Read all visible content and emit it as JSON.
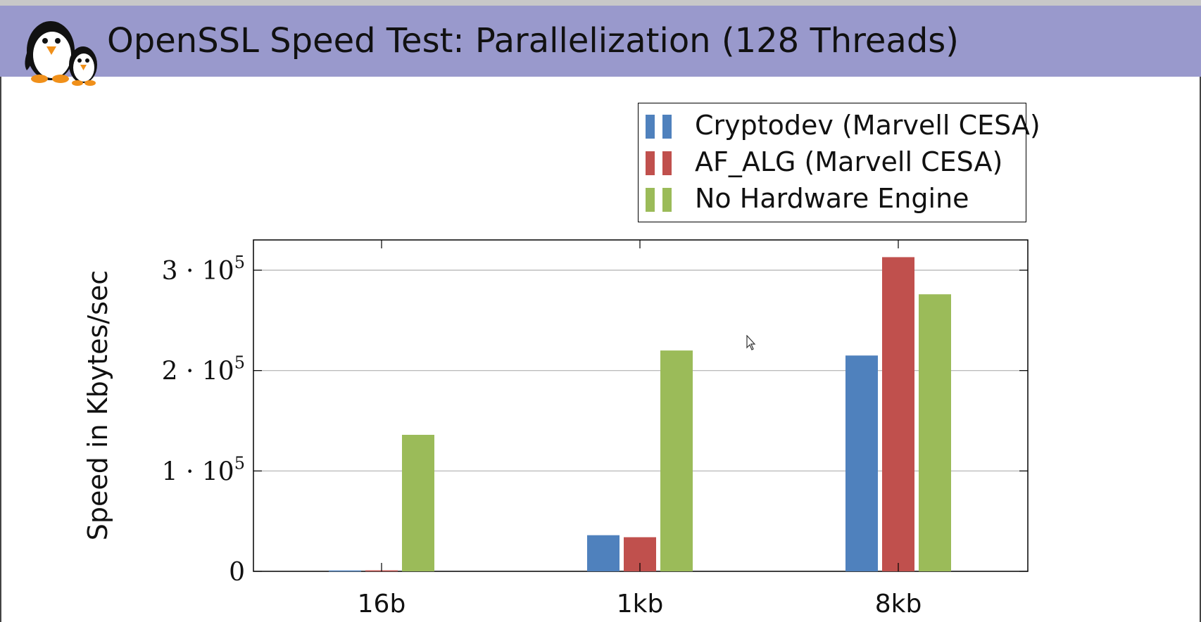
{
  "page": {
    "title": "OpenSSL Speed Test: Parallelization (128 Threads)"
  },
  "colors": {
    "header_bg": "#9999cc",
    "cryptodev": "#4f81bd",
    "af_alg": "#c0504d",
    "no_hw": "#9bbb59",
    "grid": "#b0b0b0"
  },
  "chart_data": {
    "type": "bar",
    "title": "",
    "xlabel": "",
    "ylabel": "Speed in Kbytes/sec",
    "categories": [
      "16b",
      "1kb",
      "8kb"
    ],
    "series": [
      {
        "name": "Cryptodev (Marvell CESA)",
        "color": "#4f81bd",
        "values": [
          900,
          36000,
          215000
        ]
      },
      {
        "name": "AF_ALG (Marvell CESA)",
        "color": "#c0504d",
        "values": [
          1000,
          34000,
          313000
        ]
      },
      {
        "name": "No Hardware Engine",
        "color": "#9bbb59",
        "values": [
          136000,
          220000,
          276000
        ]
      }
    ],
    "ylim": [
      0,
      330000
    ],
    "yticks": [
      0,
      100000,
      200000,
      300000
    ],
    "ytick_labels": [
      {
        "mantissa": "0",
        "exp": ""
      },
      {
        "mantissa": "1 · 10",
        "exp": "5"
      },
      {
        "mantissa": "2 · 10",
        "exp": "5"
      },
      {
        "mantissa": "3 · 10",
        "exp": "5"
      }
    ],
    "grid": true,
    "legend_position": "top-right"
  }
}
